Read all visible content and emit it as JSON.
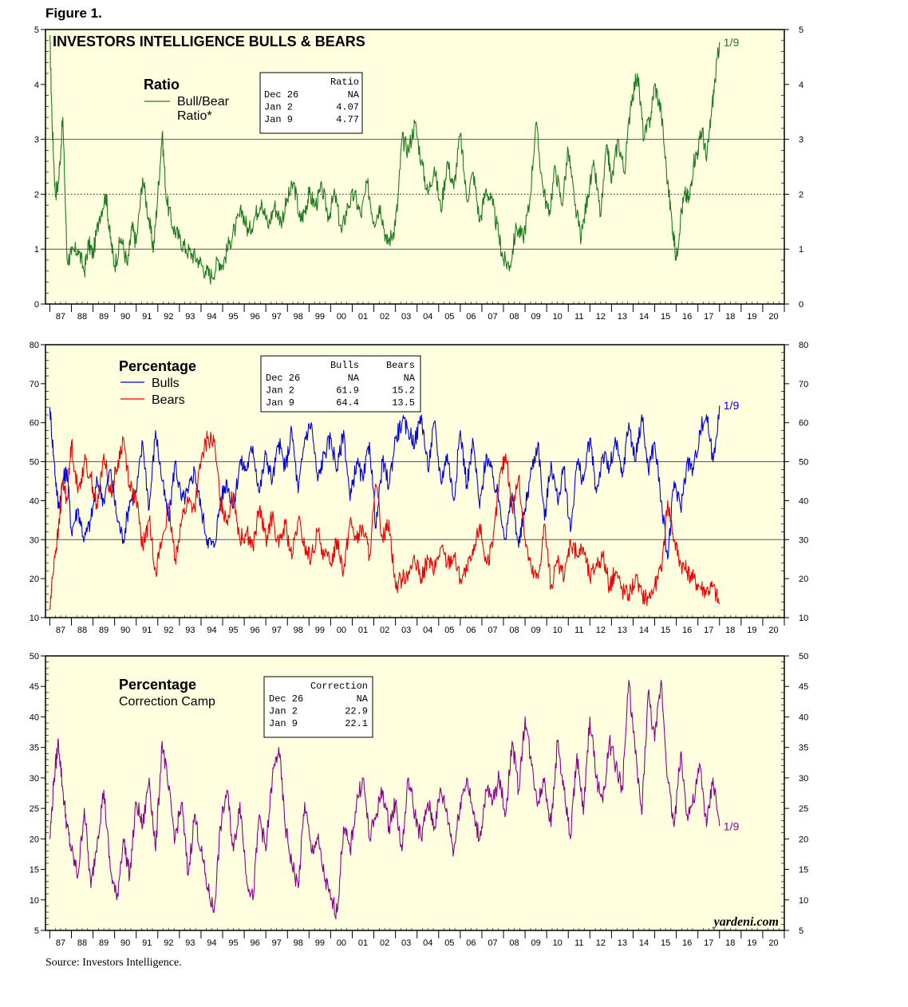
{
  "figure_label": "Figure 1.",
  "source": "Source: Investors Intelligence.",
  "watermark": "yardeni.com",
  "x_tick_labels": [
    "87",
    "88",
    "89",
    "90",
    "91",
    "92",
    "93",
    "94",
    "95",
    "96",
    "97",
    "98",
    "99",
    "00",
    "01",
    "02",
    "03",
    "04",
    "05",
    "06",
    "07",
    "08",
    "09",
    "10",
    "11",
    "12",
    "13",
    "14",
    "15",
    "16",
    "17",
    "18",
    "19",
    "20"
  ],
  "chart_data": [
    {
      "type": "line",
      "title": "INVESTORS INTELLIGENCE BULLS & BEARS",
      "panel_title": "Ratio",
      "xlim": [
        1986.8,
        2021.0
      ],
      "ylim": [
        0,
        5
      ],
      "yticks": [
        0,
        1,
        2,
        3,
        4,
        5
      ],
      "gridlines": [
        1,
        3
      ],
      "dotted_lines": [
        2
      ],
      "legend": [
        {
          "name": "Bull/Bear Ratio*",
          "label_lines": [
            "Bull/Bear",
            "Ratio*"
          ],
          "color": "#1e7a1e"
        }
      ],
      "end_label": "1/9",
      "table": {
        "headers": [
          "",
          "Ratio"
        ],
        "rows": [
          [
            "Dec 26",
            "NA"
          ],
          [
            "Jan  2",
            "4.07"
          ],
          [
            "Jan  9",
            "4.77"
          ]
        ]
      },
      "series": [
        {
          "name": "Bull/Bear Ratio",
          "color": "#1e7a1e",
          "x": [
            1987.0,
            1987.1,
            1987.25,
            1987.4,
            1987.6,
            1987.8,
            1988.0,
            1988.3,
            1988.6,
            1988.8,
            1989.0,
            1989.3,
            1989.6,
            1989.8,
            1990.0,
            1990.3,
            1990.6,
            1990.8,
            1991.0,
            1991.3,
            1991.6,
            1991.8,
            1992.0,
            1992.2,
            1992.4,
            1992.7,
            1993.0,
            1993.3,
            1993.6,
            1993.9,
            1994.2,
            1994.5,
            1994.8,
            1995.0,
            1995.3,
            1995.6,
            1995.9,
            1996.2,
            1996.5,
            1996.8,
            1997.1,
            1997.4,
            1997.7,
            1998.0,
            1998.3,
            1998.6,
            1998.8,
            1999.0,
            1999.3,
            1999.6,
            1999.9,
            2000.2,
            2000.5,
            2000.8,
            2001.1,
            2001.4,
            2001.7,
            2002.0,
            2002.3,
            2002.6,
            2002.9,
            2003.1,
            2003.3,
            2003.6,
            2003.9,
            2004.2,
            2004.5,
            2004.8,
            2005.1,
            2005.4,
            2005.7,
            2006.0,
            2006.3,
            2006.6,
            2006.9,
            2007.2,
            2007.5,
            2007.8,
            2008.0,
            2008.3,
            2008.6,
            2008.9,
            2009.2,
            2009.5,
            2009.8,
            2010.1,
            2010.4,
            2010.7,
            2011.0,
            2011.3,
            2011.6,
            2011.9,
            2012.2,
            2012.5,
            2012.8,
            2013.0,
            2013.3,
            2013.6,
            2013.9,
            2014.2,
            2014.5,
            2014.8,
            2015.0,
            2015.3,
            2015.6,
            2015.8,
            2016.0,
            2016.2,
            2016.4,
            2016.6,
            2016.8,
            2017.0,
            2017.2,
            2017.4,
            2017.6,
            2017.8,
            2018.0
          ],
          "values": [
            4.9,
            3.4,
            2.0,
            2.2,
            3.4,
            0.8,
            0.9,
            1.0,
            0.6,
            1.1,
            0.9,
            1.6,
            2.0,
            1.2,
            0.7,
            1.2,
            0.7,
            1.4,
            1.1,
            2.3,
            1.5,
            1.0,
            2.0,
            3.1,
            1.9,
            1.4,
            1.2,
            1.0,
            0.9,
            0.8,
            0.6,
            0.5,
            0.8,
            0.7,
            1.1,
            1.4,
            1.7,
            1.3,
            1.6,
            1.9,
            1.4,
            1.8,
            1.5,
            1.9,
            2.2,
            1.5,
            1.7,
            2.0,
            1.8,
            2.1,
            1.6,
            2.0,
            1.3,
            1.8,
            2.0,
            1.6,
            2.2,
            1.5,
            1.8,
            1.1,
            1.3,
            1.8,
            3.0,
            2.8,
            3.3,
            2.6,
            2.0,
            2.5,
            1.7,
            2.6,
            2.1,
            3.1,
            1.9,
            2.4,
            1.5,
            2.1,
            1.8,
            1.2,
            0.8,
            0.7,
            1.4,
            1.2,
            1.8,
            3.3,
            2.2,
            1.6,
            2.5,
            1.8,
            2.8,
            1.8,
            1.2,
            2.0,
            2.5,
            1.6,
            2.9,
            2.2,
            3.0,
            2.4,
            3.7,
            4.2,
            3.0,
            3.4,
            4.0,
            3.5,
            2.2,
            1.5,
            0.8,
            1.6,
            2.0,
            1.9,
            2.6,
            2.8,
            3.2,
            2.6,
            3.4,
            4.1,
            4.77
          ]
        }
      ]
    },
    {
      "type": "line",
      "panel_title": "Percentage",
      "xlim": [
        1986.8,
        2021.0
      ],
      "ylim": [
        10,
        80
      ],
      "yticks": [
        10,
        20,
        30,
        40,
        50,
        60,
        70,
        80
      ],
      "gridlines": [
        30,
        50
      ],
      "legend": [
        {
          "name": "Bulls",
          "color": "#0000dd"
        },
        {
          "name": "Bears",
          "color": "#ee0000"
        }
      ],
      "end_label": "1/9",
      "table": {
        "headers": [
          "",
          "Bulls",
          "Bears"
        ],
        "rows": [
          [
            "Dec 26",
            "NA",
            "NA"
          ],
          [
            "Jan  2",
            "61.9",
            "15.2"
          ],
          [
            "Jan  9",
            "64.4",
            "13.5"
          ]
        ]
      },
      "series": [
        {
          "name": "Bulls",
          "color": "#0000dd",
          "x": [
            1987.0,
            1987.2,
            1987.4,
            1987.6,
            1987.8,
            1988.0,
            1988.3,
            1988.6,
            1988.9,
            1989.2,
            1989.5,
            1989.8,
            1990.1,
            1990.4,
            1990.7,
            1991.0,
            1991.3,
            1991.6,
            1991.9,
            1992.2,
            1992.5,
            1992.8,
            1993.1,
            1993.4,
            1993.7,
            1994.0,
            1994.3,
            1994.6,
            1994.9,
            1995.2,
            1995.5,
            1995.8,
            1996.1,
            1996.4,
            1996.7,
            1997.0,
            1997.3,
            1997.6,
            1997.9,
            1998.2,
            1998.5,
            1998.8,
            1999.1,
            1999.4,
            1999.7,
            2000.0,
            2000.3,
            2000.6,
            2000.9,
            2001.2,
            2001.5,
            2001.8,
            2002.1,
            2002.4,
            2002.7,
            2003.0,
            2003.3,
            2003.6,
            2003.9,
            2004.2,
            2004.5,
            2004.8,
            2005.1,
            2005.4,
            2005.7,
            2006.0,
            2006.3,
            2006.6,
            2006.9,
            2007.2,
            2007.5,
            2007.8,
            2008.1,
            2008.4,
            2008.7,
            2009.0,
            2009.3,
            2009.6,
            2009.9,
            2010.2,
            2010.5,
            2010.8,
            2011.1,
            2011.4,
            2011.7,
            2012.0,
            2012.3,
            2012.6,
            2012.9,
            2013.2,
            2013.5,
            2013.8,
            2014.1,
            2014.4,
            2014.7,
            2015.0,
            2015.3,
            2015.6,
            2015.9,
            2016.2,
            2016.5,
            2016.8,
            2017.1,
            2017.4,
            2017.7,
            2018.0
          ],
          "values": [
            64,
            50,
            38,
            45,
            48,
            32,
            38,
            30,
            35,
            45,
            40,
            48,
            36,
            30,
            40,
            42,
            55,
            38,
            58,
            45,
            35,
            50,
            40,
            42,
            48,
            38,
            30,
            28,
            40,
            45,
            38,
            50,
            48,
            54,
            42,
            52,
            45,
            55,
            48,
            58,
            42,
            56,
            60,
            45,
            52,
            56,
            48,
            58,
            40,
            50,
            45,
            55,
            33,
            50,
            44,
            56,
            60,
            58,
            55,
            62,
            48,
            60,
            45,
            52,
            40,
            58,
            44,
            55,
            38,
            52,
            46,
            40,
            30,
            42,
            28,
            38,
            48,
            55,
            35,
            50,
            40,
            48,
            32,
            50,
            45,
            56,
            42,
            52,
            48,
            55,
            46,
            60,
            50,
            62,
            48,
            55,
            40,
            25,
            45,
            38,
            50,
            48,
            58,
            62,
            50,
            64.4
          ]
        },
        {
          "name": "Bears",
          "color": "#ee0000",
          "x": [
            1987.0,
            1987.2,
            1987.4,
            1987.6,
            1987.8,
            1988.0,
            1988.3,
            1988.6,
            1988.9,
            1989.2,
            1989.5,
            1989.8,
            1990.1,
            1990.4,
            1990.7,
            1991.0,
            1991.3,
            1991.6,
            1991.9,
            1992.2,
            1992.5,
            1992.8,
            1993.1,
            1993.4,
            1993.7,
            1994.0,
            1994.3,
            1994.6,
            1994.9,
            1995.2,
            1995.5,
            1995.8,
            1996.1,
            1996.4,
            1996.7,
            1997.0,
            1997.3,
            1997.6,
            1997.9,
            1998.2,
            1998.5,
            1998.8,
            1999.1,
            1999.4,
            1999.7,
            2000.0,
            2000.3,
            2000.6,
            2000.9,
            2001.2,
            2001.5,
            2001.8,
            2002.1,
            2002.4,
            2002.7,
            2003.0,
            2003.3,
            2003.6,
            2003.9,
            2004.2,
            2004.5,
            2004.8,
            2005.1,
            2005.4,
            2005.7,
            2006.0,
            2006.3,
            2006.6,
            2006.9,
            2007.2,
            2007.5,
            2007.8,
            2008.1,
            2008.4,
            2008.7,
            2009.0,
            2009.3,
            2009.6,
            2009.9,
            2010.2,
            2010.5,
            2010.8,
            2011.1,
            2011.4,
            2011.7,
            2012.0,
            2012.3,
            2012.6,
            2012.9,
            2013.2,
            2013.5,
            2013.8,
            2014.1,
            2014.4,
            2014.7,
            2015.0,
            2015.3,
            2015.6,
            2015.9,
            2016.2,
            2016.5,
            2016.8,
            2017.1,
            2017.4,
            2017.7,
            2018.0
          ],
          "values": [
            12,
            25,
            32,
            45,
            40,
            55,
            42,
            50,
            46,
            38,
            52,
            42,
            48,
            56,
            44,
            40,
            28,
            35,
            22,
            30,
            38,
            25,
            35,
            40,
            38,
            50,
            56,
            55,
            40,
            35,
            42,
            30,
            32,
            28,
            38,
            30,
            36,
            28,
            34,
            25,
            35,
            28,
            25,
            32,
            26,
            24,
            30,
            22,
            35,
            30,
            33,
            26,
            44,
            30,
            35,
            18,
            20,
            22,
            24,
            20,
            25,
            22,
            28,
            24,
            26,
            20,
            22,
            26,
            34,
            24,
            28,
            45,
            52,
            38,
            46,
            30,
            22,
            20,
            34,
            18,
            24,
            20,
            30,
            26,
            28,
            20,
            24,
            26,
            18,
            22,
            17,
            16,
            20,
            16,
            15,
            18,
            22,
            40,
            30,
            24,
            22,
            20,
            18,
            17,
            18,
            13.5
          ]
        }
      ]
    },
    {
      "type": "line",
      "panel_title": "Percentage",
      "xlim": [
        1986.8,
        2021.0
      ],
      "ylim": [
        5,
        50
      ],
      "yticks": [
        5,
        10,
        15,
        20,
        25,
        30,
        35,
        40,
        45,
        50
      ],
      "gridlines": [],
      "legend": [
        {
          "name": "Correction Camp",
          "color": "#8b008b"
        }
      ],
      "end_label": "1/9",
      "table": {
        "headers": [
          "",
          "Correction"
        ],
        "rows": [
          [
            "Dec 26",
            "NA"
          ],
          [
            "Jan  2",
            "22.9"
          ],
          [
            "Jan  9",
            "22.1"
          ]
        ]
      },
      "series": [
        {
          "name": "Correction Camp",
          "color": "#8b008b",
          "x": [
            1987.0,
            1987.2,
            1987.4,
            1987.6,
            1987.8,
            1988.0,
            1988.3,
            1988.6,
            1988.9,
            1989.2,
            1989.5,
            1989.8,
            1990.1,
            1990.4,
            1990.7,
            1991.0,
            1991.3,
            1991.6,
            1991.9,
            1992.2,
            1992.5,
            1992.8,
            1993.1,
            1993.4,
            1993.7,
            1994.0,
            1994.3,
            1994.6,
            1994.9,
            1995.2,
            1995.5,
            1995.8,
            1996.1,
            1996.4,
            1996.7,
            1997.0,
            1997.3,
            1997.6,
            1997.9,
            1998.2,
            1998.5,
            1998.8,
            1999.1,
            1999.4,
            1999.7,
            2000.0,
            2000.3,
            2000.6,
            2000.9,
            2001.2,
            2001.5,
            2001.8,
            2002.1,
            2002.4,
            2002.7,
            2003.0,
            2003.3,
            2003.6,
            2003.9,
            2004.2,
            2004.5,
            2004.8,
            2005.1,
            2005.4,
            2005.7,
            2006.0,
            2006.3,
            2006.6,
            2006.9,
            2007.2,
            2007.5,
            2007.8,
            2008.1,
            2008.4,
            2008.7,
            2009.0,
            2009.3,
            2009.6,
            2009.9,
            2010.2,
            2010.5,
            2010.8,
            2011.1,
            2011.4,
            2011.7,
            2012.0,
            2012.3,
            2012.6,
            2012.9,
            2013.2,
            2013.5,
            2013.8,
            2014.1,
            2014.4,
            2014.7,
            2015.0,
            2015.3,
            2015.6,
            2015.9,
            2016.2,
            2016.5,
            2016.8,
            2017.1,
            2017.4,
            2017.7,
            2018.0
          ],
          "values": [
            20,
            30,
            36,
            28,
            22,
            18,
            14,
            25,
            12,
            20,
            28,
            15,
            10,
            20,
            14,
            26,
            22,
            30,
            18,
            36,
            28,
            20,
            26,
            14,
            24,
            18,
            12,
            8,
            22,
            28,
            18,
            26,
            14,
            10,
            24,
            18,
            30,
            35,
            22,
            16,
            12,
            26,
            18,
            20,
            14,
            10,
            8,
            22,
            18,
            26,
            30,
            20,
            24,
            28,
            22,
            26,
            18,
            30,
            24,
            20,
            26,
            22,
            28,
            24,
            18,
            26,
            30,
            24,
            20,
            28,
            26,
            30,
            24,
            36,
            28,
            40,
            32,
            26,
            30,
            22,
            36,
            28,
            20,
            34,
            24,
            40,
            30,
            26,
            36,
            32,
            28,
            46,
            34,
            24,
            44,
            36,
            46,
            30,
            22,
            34,
            24,
            26,
            32,
            22,
            30,
            22.1
          ]
        }
      ]
    }
  ]
}
